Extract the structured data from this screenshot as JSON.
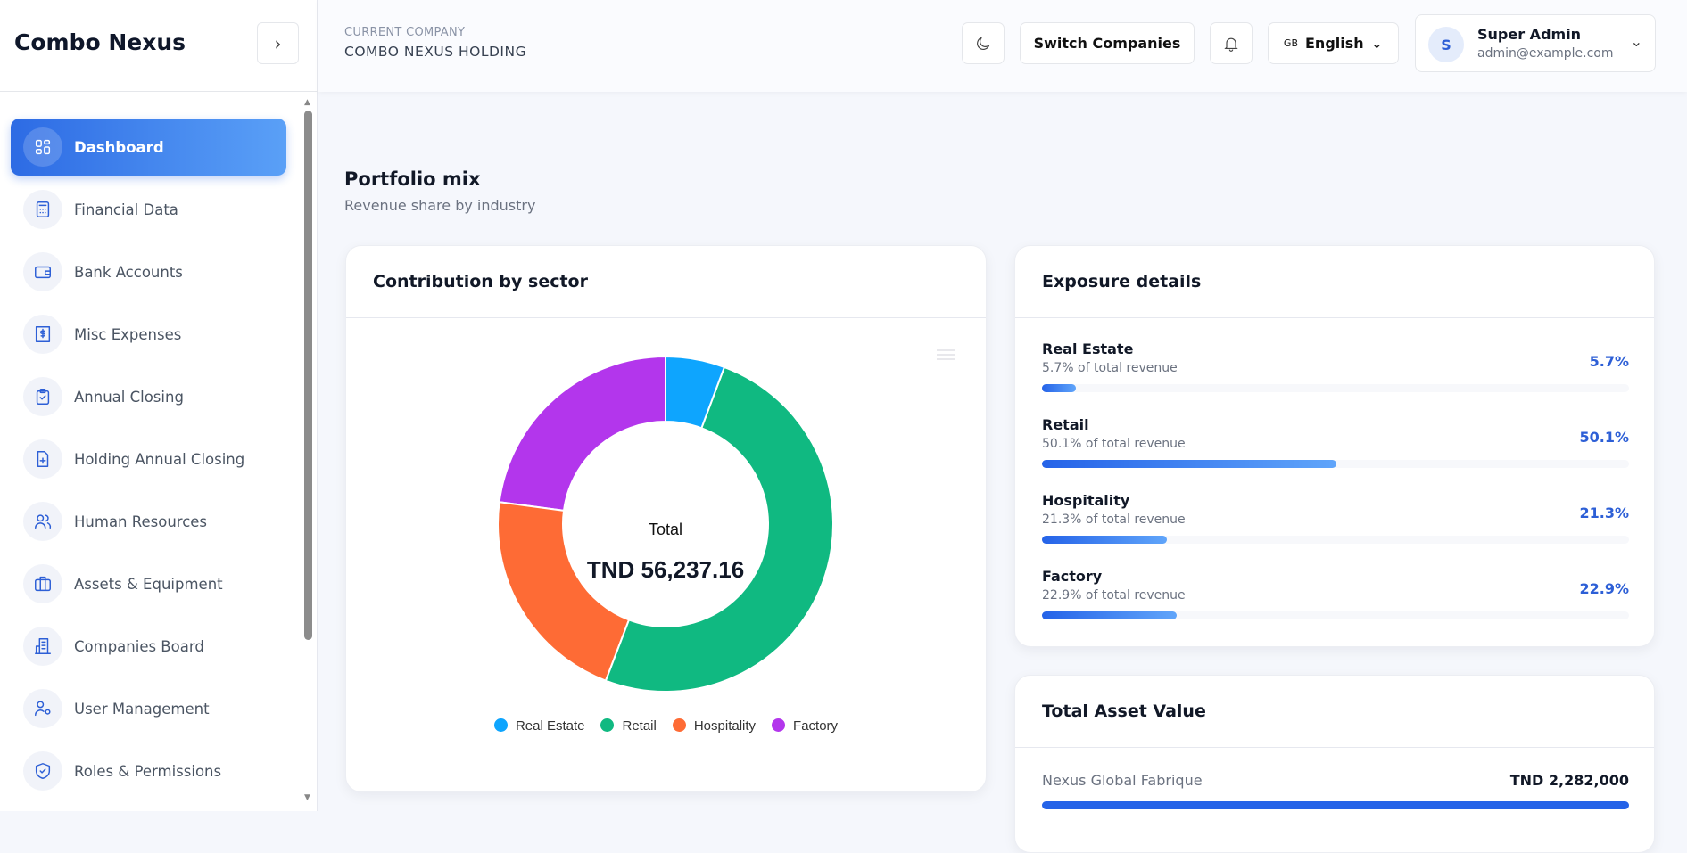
{
  "app": {
    "title": "Combo Nexus"
  },
  "sidebar": {
    "items": [
      {
        "label": "Dashboard",
        "icon": "dashboard-icon"
      },
      {
        "label": "Financial Data",
        "icon": "calculator-icon"
      },
      {
        "label": "Bank Accounts",
        "icon": "wallet-icon"
      },
      {
        "label": "Misc Expenses",
        "icon": "receipt-dollar-icon"
      },
      {
        "label": "Annual Closing",
        "icon": "clipboard-check-icon"
      },
      {
        "label": "Holding Annual Closing",
        "icon": "file-plus-icon"
      },
      {
        "label": "Human Resources",
        "icon": "users-icon"
      },
      {
        "label": "Assets & Equipment",
        "icon": "briefcase-icon"
      },
      {
        "label": "Companies Board",
        "icon": "building-icon"
      },
      {
        "label": "User Management",
        "icon": "user-cog-icon"
      },
      {
        "label": "Roles & Permissions",
        "icon": "shield-check-icon"
      }
    ]
  },
  "header": {
    "company_label": "CURRENT COMPANY",
    "company_name": "COMBO NEXUS HOLDING",
    "switch_label": "Switch Companies",
    "lang_code": "GB",
    "lang": "English",
    "user": {
      "initial": "S",
      "name": "Super Admin",
      "email": "admin@example.com"
    }
  },
  "section": {
    "title": "Portfolio mix",
    "subtitle": "Revenue share by industry"
  },
  "donut_card": {
    "title": "Contribution by sector",
    "center_label": "Total",
    "center_value": "TND 56,237.16"
  },
  "chart_data": {
    "type": "pie",
    "title": "Contribution by sector",
    "categories": [
      "Real Estate",
      "Retail",
      "Hospitality",
      "Factory"
    ],
    "values": [
      5.7,
      50.1,
      21.3,
      22.9
    ],
    "unit": "%",
    "colors": [
      "#0ea5fe",
      "#10b981",
      "#fe6b35",
      "#b336ec"
    ],
    "total": "TND 56,237.16",
    "legend": "bottom"
  },
  "exposure": {
    "title": "Exposure details",
    "rows": [
      {
        "name": "Real Estate",
        "sub": "5.7% of total revenue",
        "pct": "5.7%",
        "value": 5.7
      },
      {
        "name": "Retail",
        "sub": "50.1% of total revenue",
        "pct": "50.1%",
        "value": 50.1
      },
      {
        "name": "Hospitality",
        "sub": "21.3% of total revenue",
        "pct": "21.3%",
        "value": 21.3
      },
      {
        "name": "Factory",
        "sub": "22.9% of total revenue",
        "pct": "22.9%",
        "value": 22.9
      }
    ]
  },
  "assets": {
    "title": "Total Asset Value",
    "rows": [
      {
        "name": "Nexus Global Fabrique",
        "value": "TND 2,282,000",
        "share": 100
      }
    ]
  }
}
